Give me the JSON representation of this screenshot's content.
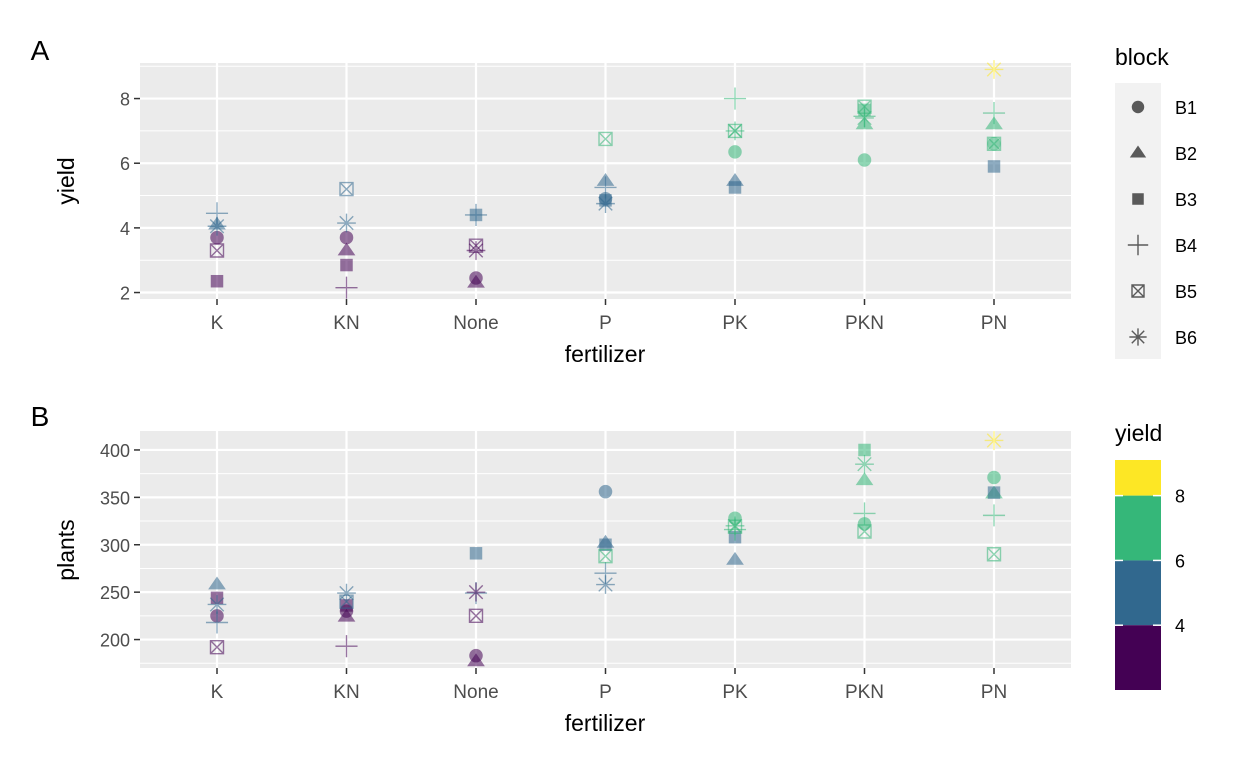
{
  "chart_data": [
    {
      "type": "scatter",
      "panel_tag": "A",
      "xlabel": "fertilizer",
      "ylabel": "yield",
      "categories": [
        "K",
        "KN",
        "None",
        "P",
        "PK",
        "PKN",
        "PN"
      ],
      "ylim": [
        1.8,
        9.1
      ],
      "yticks": [
        2,
        4,
        6,
        8
      ],
      "grid": true,
      "series": [
        {
          "name": "B1",
          "shape": "circle",
          "values": [
            3.7,
            3.7,
            2.45,
            4.9,
            6.35,
            6.1,
            6.6
          ]
        },
        {
          "name": "B2",
          "shape": "triangle",
          "values": [
            4.1,
            3.3,
            2.3,
            5.45,
            5.45,
            7.2,
            7.2
          ]
        },
        {
          "name": "B3",
          "shape": "square",
          "values": [
            2.35,
            2.85,
            4.4,
            4.85,
            5.25,
            7.65,
            5.9
          ]
        },
        {
          "name": "B4",
          "shape": "plus",
          "values": [
            4.45,
            2.15,
            4.4,
            5.25,
            8.0,
            7.45,
            7.55
          ]
        },
        {
          "name": "B5",
          "shape": "boxcross",
          "values": [
            3.3,
            5.2,
            3.45,
            6.75,
            7.0,
            7.75,
            6.6
          ]
        },
        {
          "name": "B6",
          "shape": "asterisk",
          "values": [
            4.05,
            4.15,
            3.3,
            4.75,
            7.0,
            7.4,
            8.9
          ]
        }
      ]
    },
    {
      "type": "scatter",
      "panel_tag": "B",
      "xlabel": "fertilizer",
      "ylabel": "plants",
      "categories": [
        "K",
        "KN",
        "None",
        "P",
        "PK",
        "PKN",
        "PN"
      ],
      "ylim": [
        170,
        420
      ],
      "yticks": [
        200,
        250,
        300,
        350,
        400
      ],
      "grid": true,
      "series": [
        {
          "name": "B1",
          "shape": "circle",
          "values": [
            225,
            230,
            183,
            356,
            328,
            322,
            371
          ]
        },
        {
          "name": "B2",
          "shape": "triangle",
          "values": [
            258,
            224,
            177,
            302,
            284,
            368,
            354
          ]
        },
        {
          "name": "B3",
          "shape": "square",
          "values": [
            244,
            236,
            291,
            300,
            308,
            400,
            355
          ]
        },
        {
          "name": "B4",
          "shape": "plus",
          "values": [
            218,
            193,
            249,
            270,
            316,
            333,
            331
          ]
        },
        {
          "name": "B5",
          "shape": "boxcross",
          "values": [
            192,
            240,
            225,
            288,
            319,
            314,
            290
          ]
        },
        {
          "name": "B6",
          "shape": "asterisk",
          "values": [
            237,
            249,
            250,
            258,
            320,
            385,
            410
          ]
        }
      ]
    }
  ],
  "legend": {
    "shape_title": "block",
    "shape_entries": [
      {
        "label": "B1",
        "shape": "circle"
      },
      {
        "label": "B2",
        "shape": "triangle"
      },
      {
        "label": "B3",
        "shape": "square"
      },
      {
        "label": "B4",
        "shape": "plus"
      },
      {
        "label": "B5",
        "shape": "boxcross"
      },
      {
        "label": "B6",
        "shape": "asterisk"
      }
    ],
    "color_title": "yield",
    "color_labels": [
      "4",
      "6",
      "8"
    ],
    "color_bins": [
      {
        "from": 9.1,
        "to": 8.0,
        "color": "#FDE725"
      },
      {
        "from": 8.0,
        "to": 6.0,
        "color": "#35B779"
      },
      {
        "from": 6.0,
        "to": 4.0,
        "color": "#31688E"
      },
      {
        "from": 4.0,
        "to": 2.0,
        "color": "#440154"
      }
    ]
  }
}
